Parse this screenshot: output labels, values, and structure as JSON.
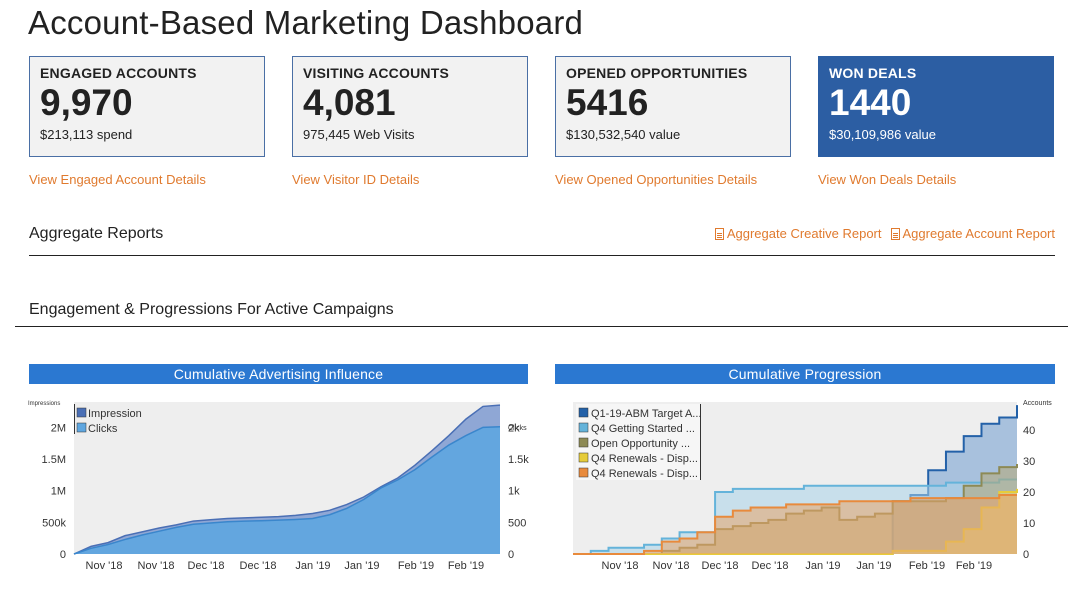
{
  "page": {
    "title": "Account-Based Marketing Dashboard"
  },
  "cards": [
    {
      "label": "ENGAGED ACCOUNTS",
      "value": "9,970",
      "sub": "$213,113 spend",
      "link": "View Engaged Account Details"
    },
    {
      "label": "VISITING ACCOUNTS",
      "value": "4,081",
      "sub": "975,445 Web Visits",
      "link": "View Visitor ID Details"
    },
    {
      "label": "OPENED OPPORTUNITIES",
      "value": "5416",
      "sub": "$130,532,540 value",
      "link": "View Opened Opportunities Details"
    },
    {
      "label": "WON DEALS",
      "value": "1440",
      "sub": "$30,109,986 value",
      "link": "View Won Deals Details"
    }
  ],
  "aggregate": {
    "heading": "Aggregate Reports",
    "creative_link": "Aggregate Creative Report",
    "account_link": "Aggregate Account Report"
  },
  "engagement": {
    "heading": "Engagement & Progressions For Active Campaigns"
  },
  "colors": {
    "brand_blue": "#2b78d1",
    "card_blue": "#2c5ea3",
    "link_orange": "#e07a2e"
  },
  "chart_data": [
    {
      "type": "area",
      "title": "Cumulative Advertising Influence",
      "ylabel_left": "Impressions",
      "ylabel_right": "Clicks",
      "x_ticks": [
        "Nov '18",
        "Nov '18",
        "Dec '18",
        "Dec '18",
        "Jan '19",
        "Jan '19",
        "Feb '19",
        "Feb '19"
      ],
      "y_left_ticks": [
        "0",
        "500k",
        "1M",
        "1.5M",
        "2M"
      ],
      "y_right_ticks": [
        "0",
        "500",
        "1k",
        "1.5k",
        "2k"
      ],
      "ylim_left": [
        0,
        2400000
      ],
      "ylim_right": [
        0,
        2400
      ],
      "legend": "top-left",
      "series": [
        {
          "name": "Impression",
          "axis": "left",
          "color": "#4a6fb5",
          "values": [
            0,
            120000,
            180000,
            290000,
            350000,
            410000,
            460000,
            520000,
            540000,
            560000,
            570000,
            580000,
            590000,
            610000,
            640000,
            690000,
            780000,
            900000,
            1060000,
            1200000,
            1400000,
            1630000,
            1870000,
            2130000,
            2330000,
            2350000
          ]
        },
        {
          "name": "Clicks",
          "axis": "right",
          "color": "#5ea6e0",
          "values": [
            0,
            90,
            150,
            230,
            300,
            360,
            420,
            470,
            490,
            510,
            520,
            525,
            535,
            545,
            560,
            620,
            720,
            860,
            1040,
            1170,
            1330,
            1530,
            1720,
            1870,
            2000,
            2010
          ]
        }
      ]
    },
    {
      "type": "area",
      "title": "Cumulative Progression",
      "ylabel_right": "Accounts",
      "x_ticks": [
        "Nov '18",
        "Nov '18",
        "Dec '18",
        "Dec '18",
        "Jan '19",
        "Jan '19",
        "Feb '19",
        "Feb '19"
      ],
      "y_right_ticks": [
        "0",
        "10",
        "20",
        "30",
        "40"
      ],
      "ylim": [
        0,
        49
      ],
      "legend": "top-left",
      "series": [
        {
          "name": "Q1-19-ABM Target A...",
          "color": "#2361a8",
          "values": [
            0,
            0,
            0,
            0,
            0,
            0,
            0,
            0,
            0,
            0,
            0,
            0,
            0,
            0,
            0,
            0,
            0,
            0,
            17,
            19,
            27,
            33,
            38,
            42,
            44,
            48
          ]
        },
        {
          "name": "Q4 Getting Started ...",
          "color": "#64b3da",
          "values": [
            0,
            1,
            2,
            2,
            3,
            5,
            7,
            7,
            20,
            21,
            21,
            21,
            21,
            22,
            22,
            22,
            22,
            22,
            22,
            22,
            22,
            23,
            23,
            23,
            24,
            24
          ]
        },
        {
          "name": "Open Opportunity ...",
          "color": "#8d8a55",
          "values": [
            0,
            0,
            0,
            0,
            0,
            1,
            2,
            3,
            8,
            9,
            10,
            11,
            13,
            14,
            15,
            11,
            12,
            13,
            17,
            17,
            17,
            18,
            22,
            26,
            28,
            29
          ]
        },
        {
          "name": "Q4 Renewals - Disp...",
          "color": "#e6cc3a",
          "values": [
            0,
            0,
            0,
            0,
            0,
            0,
            0,
            0,
            0,
            0,
            0,
            0,
            0,
            0,
            0,
            0,
            0,
            0,
            1,
            1,
            1,
            4,
            8,
            15,
            20,
            21
          ]
        },
        {
          "name": "Q4 Renewals - Disp...",
          "color": "#e88a3c",
          "values": [
            0,
            0,
            0,
            0,
            1,
            4,
            5,
            7,
            12,
            14,
            15,
            15,
            16,
            16,
            16,
            17,
            17,
            17,
            17,
            18,
            18,
            18,
            18,
            18,
            19,
            19
          ]
        }
      ]
    }
  ]
}
